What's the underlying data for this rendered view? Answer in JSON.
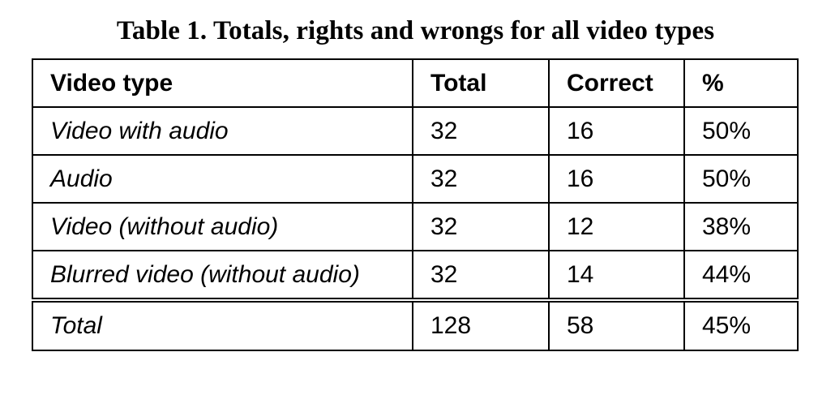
{
  "caption": "Table 1. Totals, rights and wrongs for all video types",
  "table": {
    "headers": {
      "video_type": "Video type",
      "total": "Total",
      "correct": "Correct",
      "percent": "%"
    },
    "rows": [
      {
        "video_type": "Video with audio",
        "total": "32",
        "correct": "16",
        "percent": "50%"
      },
      {
        "video_type": "Audio",
        "total": "32",
        "correct": "16",
        "percent": "50%"
      },
      {
        "video_type": "Video (without audio)",
        "total": "32",
        "correct": "12",
        "percent": "38%"
      },
      {
        "video_type": "Blurred video (without audio)",
        "total": "32",
        "correct": "14",
        "percent": "44%"
      }
    ],
    "total_row": {
      "video_type": "Total",
      "total": "128",
      "correct": "58",
      "percent": "45%"
    }
  }
}
